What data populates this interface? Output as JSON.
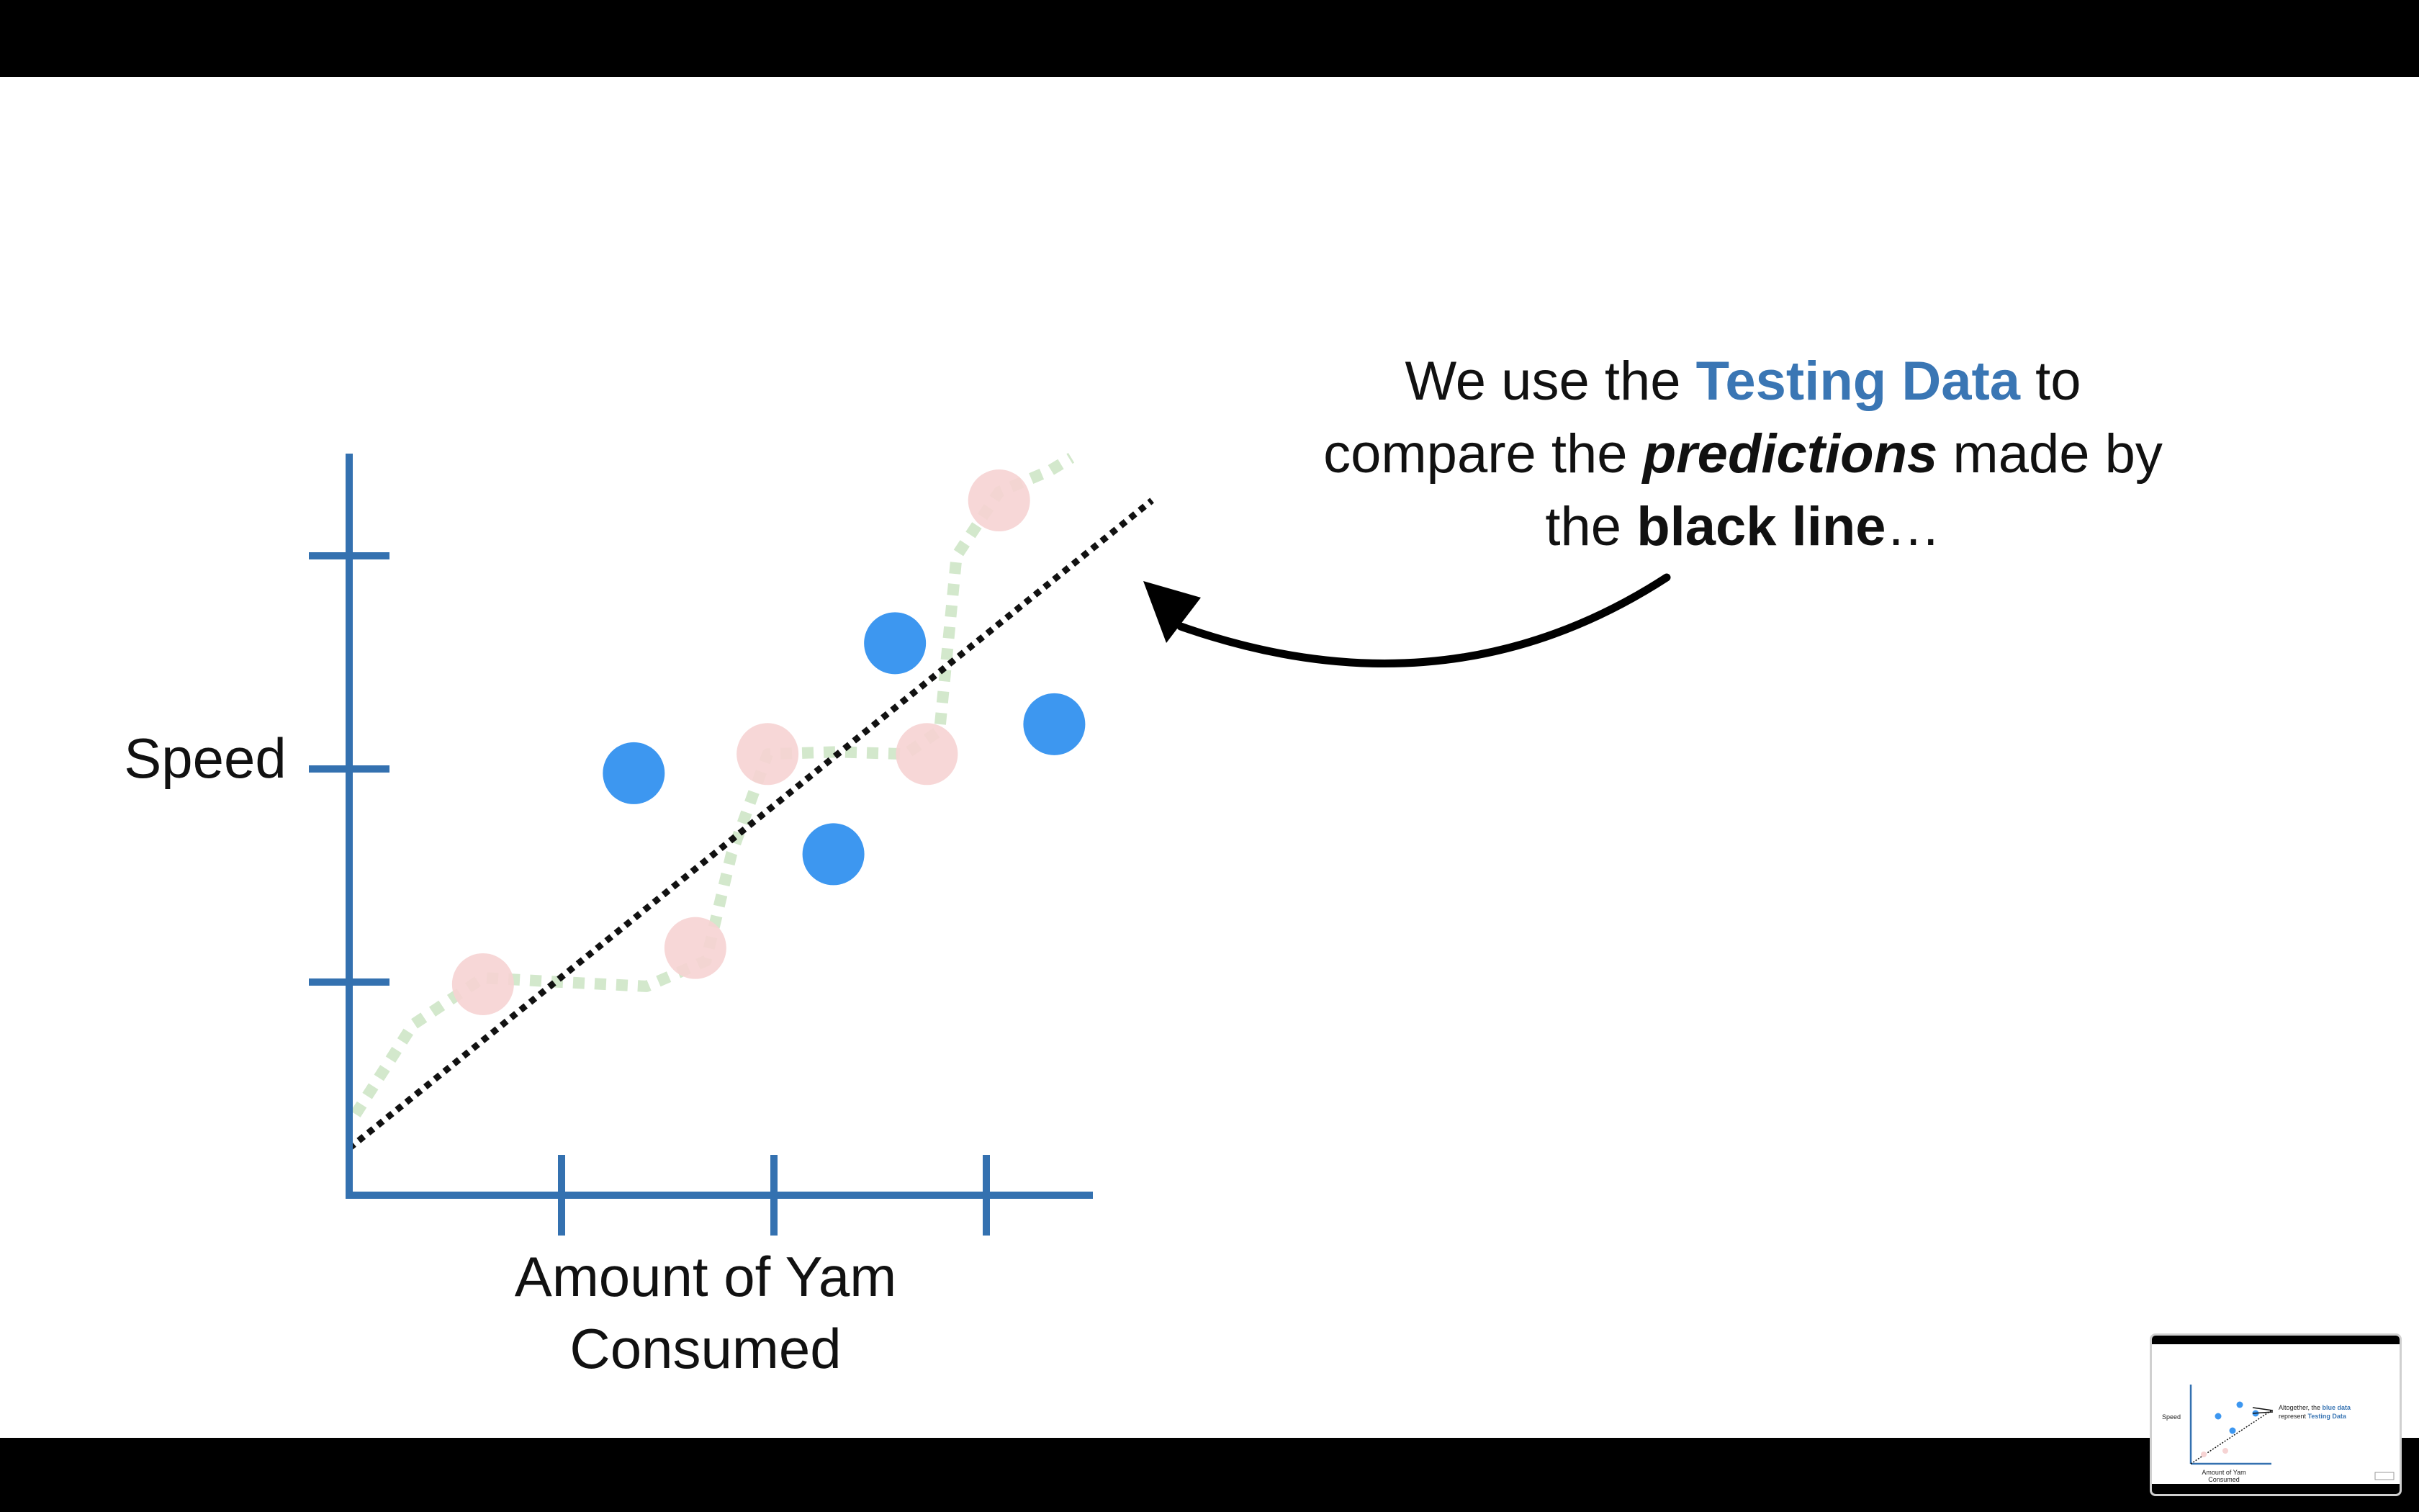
{
  "colors": {
    "axis": "#3471b0",
    "testing_point": "#3d97f0",
    "training_point": "#f6d3d3",
    "green_fit": "#d3e8cc",
    "black_line": "#111111",
    "highlight_blue": "#3a76b4",
    "frame": "#000000"
  },
  "callout": {
    "line1_a": "We use the ",
    "line1_b": "Testing Data",
    "line1_c": " to",
    "line2_a": "compare the ",
    "line2_b": "predictions",
    "line2_c": " made by",
    "line3_a": "the ",
    "line3_b": "black line",
    "line3_c": "…"
  },
  "thumbnail": {
    "callout_line1_a": "Altogether, the ",
    "callout_line1_b": "blue data",
    "callout_line2_a": "represent ",
    "callout_line2_b": "Testing Data",
    "speed_label": "Speed",
    "xlabel_line1": "Amount of Yam",
    "xlabel_line2": "Consumed"
  },
  "chart_data": {
    "type": "scatter",
    "xlabel_line1": "Amount of Yam",
    "xlabel_line2": "Consumed",
    "ylabel": "Speed",
    "xlim": [
      0,
      3.5
    ],
    "ylim": [
      0,
      3.2
    ],
    "x_ticks": [
      1,
      2,
      3
    ],
    "y_ticks": [
      1,
      2,
      3
    ],
    "grid": false,
    "series": [
      {
        "role": "testing",
        "points": [
          {
            "x": 1.34,
            "y": 1.98
          },
          {
            "x": 2.28,
            "y": 1.6
          },
          {
            "x": 2.57,
            "y": 2.59
          },
          {
            "x": 3.32,
            "y": 2.21
          }
        ]
      },
      {
        "role": "training",
        "points": [
          {
            "x": 0.63,
            "y": 0.99
          },
          {
            "x": 1.63,
            "y": 1.16
          },
          {
            "x": 1.97,
            "y": 2.07
          },
          {
            "x": 2.72,
            "y": 2.07
          },
          {
            "x": 3.06,
            "y": 3.26
          }
        ]
      }
    ],
    "straight_line": {
      "x": [
        0,
        3.78
      ],
      "y": [
        0.22,
        3.26
      ]
    },
    "squiggly_line": {
      "x": [
        0.03,
        0.3,
        0.63,
        1.0,
        1.4,
        1.68,
        1.8,
        1.97,
        2.3,
        2.62,
        2.78,
        2.86,
        3.06,
        3.3,
        3.4
      ],
      "y": [
        0.38,
        0.8,
        1.02,
        1.0,
        0.98,
        1.1,
        1.6,
        2.07,
        2.08,
        2.07,
        2.18,
        3.0,
        3.3,
        3.4,
        3.46
      ]
    }
  }
}
